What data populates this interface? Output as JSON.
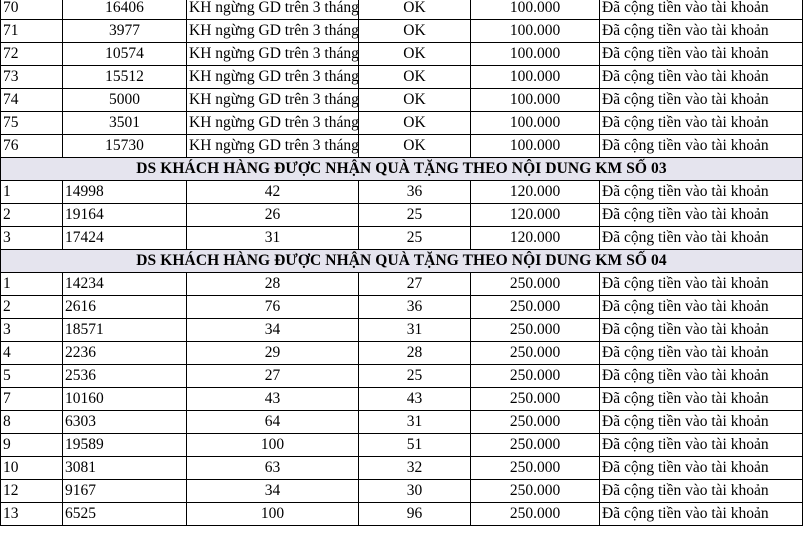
{
  "group_top": {
    "rows": [
      {
        "stt": "70",
        "code": "16406",
        "reason": "KH ngừng GD trên 3 tháng",
        "status": "OK",
        "amount": "100.000",
        "note": "Đã cộng tiền vào tài khoản"
      },
      {
        "stt": "71",
        "code": "3977",
        "reason": "KH ngừng GD trên 3 tháng",
        "status": "OK",
        "amount": "100.000",
        "note": "Đã cộng tiền vào tài khoản"
      },
      {
        "stt": "72",
        "code": "10574",
        "reason": "KH ngừng GD trên 3 tháng",
        "status": "OK",
        "amount": "100.000",
        "note": "Đã cộng tiền vào tài khoản"
      },
      {
        "stt": "73",
        "code": "15512",
        "reason": "KH ngừng GD trên 3 tháng",
        "status": "OK",
        "amount": "100.000",
        "note": "Đã cộng tiền vào tài khoản"
      },
      {
        "stt": "74",
        "code": "5000",
        "reason": "KH ngừng GD trên 3 tháng",
        "status": "OK",
        "amount": "100.000",
        "note": "Đã cộng tiền vào tài khoản"
      },
      {
        "stt": "75",
        "code": "3501",
        "reason": "KH ngừng GD trên 3 tháng",
        "status": "OK",
        "amount": "100.000",
        "note": "Đã cộng tiền vào tài khoản"
      },
      {
        "stt": "76",
        "code": "15730",
        "reason": "KH ngừng GD trên 3 tháng",
        "status": "OK",
        "amount": "100.000",
        "note": "Đã cộng tiền vào tài khoản"
      }
    ]
  },
  "group_03": {
    "heading": "DS KHÁCH HÀNG ĐƯỢC NHẬN QUÀ TẶNG THEO NỘI DUNG KM SỐ 03",
    "rows": [
      {
        "stt": "1",
        "code": "14998",
        "v1": "42",
        "v2": "36",
        "amount": "120.000",
        "note": "Đã cộng tiền vào tài khoản"
      },
      {
        "stt": "2",
        "code": "19164",
        "v1": "26",
        "v2": "25",
        "amount": "120.000",
        "note": "Đã cộng tiền vào tài khoản"
      },
      {
        "stt": "3",
        "code": "17424",
        "v1": "31",
        "v2": "25",
        "amount": "120.000",
        "note": "Đã cộng tiền vào tài khoản"
      }
    ]
  },
  "group_04": {
    "heading": "DS KHÁCH HÀNG ĐƯỢC NHẬN QUÀ TẶNG THEO NỘI DUNG KM SỐ 04",
    "rows": [
      {
        "stt": "1",
        "code": "14234",
        "v1": "28",
        "v2": "27",
        "amount": "250.000",
        "note": "Đã cộng tiền vào tài khoản"
      },
      {
        "stt": "2",
        "code": "2616",
        "v1": "76",
        "v2": "36",
        "amount": "250.000",
        "note": "Đã cộng tiền vào tài khoản"
      },
      {
        "stt": "3",
        "code": "18571",
        "v1": "34",
        "v2": "31",
        "amount": "250.000",
        "note": "Đã cộng tiền vào tài khoản"
      },
      {
        "stt": "4",
        "code": "2236",
        "v1": "29",
        "v2": "28",
        "amount": "250.000",
        "note": "Đã cộng tiền vào tài khoản"
      },
      {
        "stt": "5",
        "code": "2536",
        "v1": "27",
        "v2": "25",
        "amount": "250.000",
        "note": "Đã cộng tiền vào tài khoản"
      },
      {
        "stt": "7",
        "code": "10160",
        "v1": "43",
        "v2": "43",
        "amount": "250.000",
        "note": "Đã cộng tiền vào tài khoản"
      },
      {
        "stt": "8",
        "code": "6303",
        "v1": "64",
        "v2": "31",
        "amount": "250.000",
        "note": "Đã cộng tiền vào tài khoản"
      },
      {
        "stt": "9",
        "code": "19589",
        "v1": "100",
        "v2": "51",
        "amount": "250.000",
        "note": "Đã cộng tiền vào tài khoản"
      },
      {
        "stt": "10",
        "code": "3081",
        "v1": "63",
        "v2": "32",
        "amount": "250.000",
        "note": "Đã cộng tiền vào tài khoản"
      },
      {
        "stt": "12",
        "code": "9167",
        "v1": "34",
        "v2": "30",
        "amount": "250.000",
        "note": "Đã cộng tiền vào tài khoản"
      },
      {
        "stt": "13",
        "code": "6525",
        "v1": "100",
        "v2": "96",
        "amount": "250.000",
        "note": "Đã cộng tiền vào tài khoản"
      }
    ]
  }
}
